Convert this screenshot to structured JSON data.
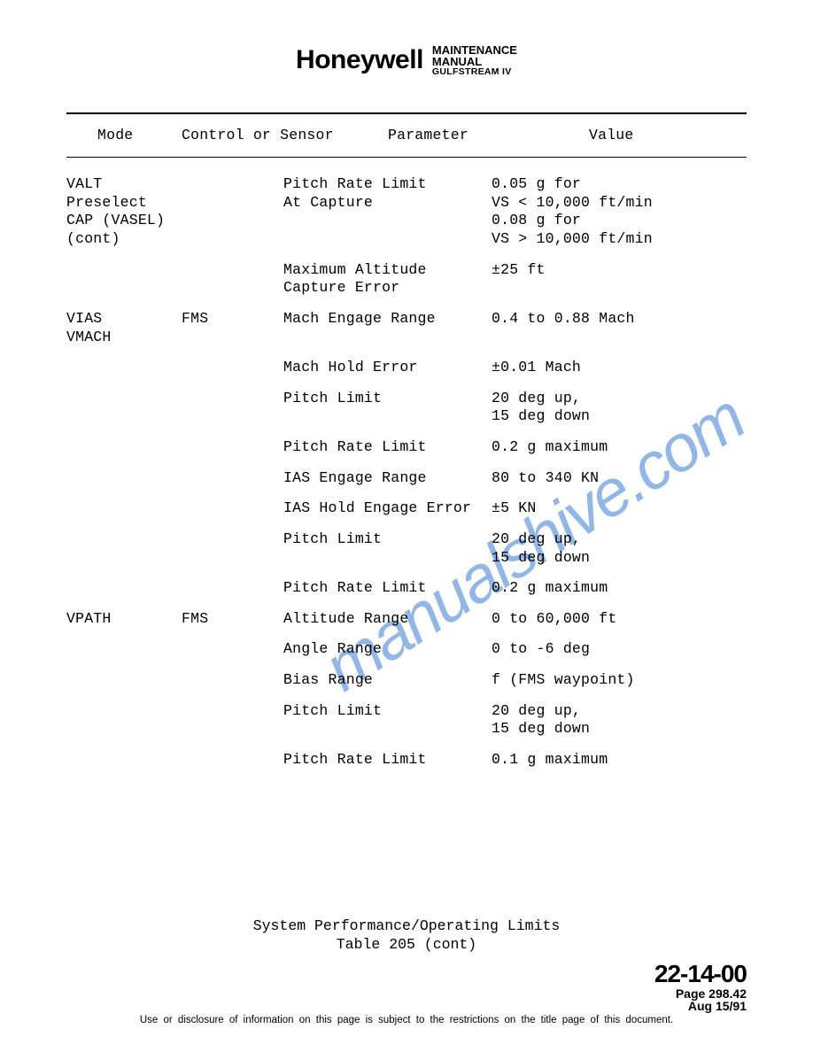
{
  "header": {
    "brand": "Honeywell",
    "line1": "MAINTENANCE",
    "line2": "MANUAL",
    "line3": "GULFSTREAM IV"
  },
  "watermark": "manualshive.com",
  "columns": {
    "mode": "Mode",
    "ctrl": "Control or Sensor",
    "param": "Parameter",
    "value": "Value"
  },
  "rows": [
    {
      "mode": "VALT\nPreselect\nCAP (VASEL)\n(cont)",
      "ctrl": "",
      "param": "Pitch Rate Limit\nAt Capture",
      "value": "0.05 g for\nVS < 10,000 ft/min\n0.08 g for\nVS > 10,000 ft/min"
    },
    {
      "mode": "",
      "ctrl": "",
      "param": "Maximum Altitude\nCapture Error",
      "value": "±25 ft"
    },
    {
      "mode": "VIAS\nVMACH",
      "ctrl": "FMS",
      "param": "Mach Engage Range",
      "value": "0.4 to 0.88 Mach"
    },
    {
      "mode": "",
      "ctrl": "",
      "param": "Mach Hold Error",
      "value": "±0.01 Mach"
    },
    {
      "mode": "",
      "ctrl": "",
      "param": "Pitch Limit",
      "value": "20 deg up,\n15 deg down"
    },
    {
      "mode": "",
      "ctrl": "",
      "param": "Pitch Rate Limit",
      "value": "0.2 g maximum"
    },
    {
      "mode": "",
      "ctrl": "",
      "param": "IAS Engage Range",
      "value": "80 to 340 KN"
    },
    {
      "mode": "",
      "ctrl": "",
      "param": "IAS Hold Engage Error",
      "value": "±5 KN"
    },
    {
      "mode": "",
      "ctrl": "",
      "param": "Pitch Limit",
      "value": "20 deg up,\n15 deg down"
    },
    {
      "mode": "",
      "ctrl": "",
      "param": "Pitch Rate Limit",
      "value": "0.2 g maximum"
    },
    {
      "mode": "VPATH",
      "ctrl": "FMS",
      "param": "Altitude Range",
      "value": "0 to 60,000 ft"
    },
    {
      "mode": "",
      "ctrl": "",
      "param": "Angle Range",
      "value": "0 to -6 deg"
    },
    {
      "mode": "",
      "ctrl": "",
      "param": "Bias Range",
      "value": "f (FMS waypoint)"
    },
    {
      "mode": "",
      "ctrl": "",
      "param": "Pitch Limit",
      "value": "20 deg up,\n15 deg down"
    },
    {
      "mode": "",
      "ctrl": "",
      "param": "Pitch Rate Limit",
      "value": "0.1 g maximum"
    }
  ],
  "footer": {
    "caption1": "System Performance/Operating Limits",
    "caption2": "Table 205 (cont)",
    "section": "22-14-00",
    "page": "Page 298.42",
    "date": "Aug 15/91",
    "disclaimer": "Use or disclosure of information on this page is subject to the restrictions on the title page of this document."
  }
}
